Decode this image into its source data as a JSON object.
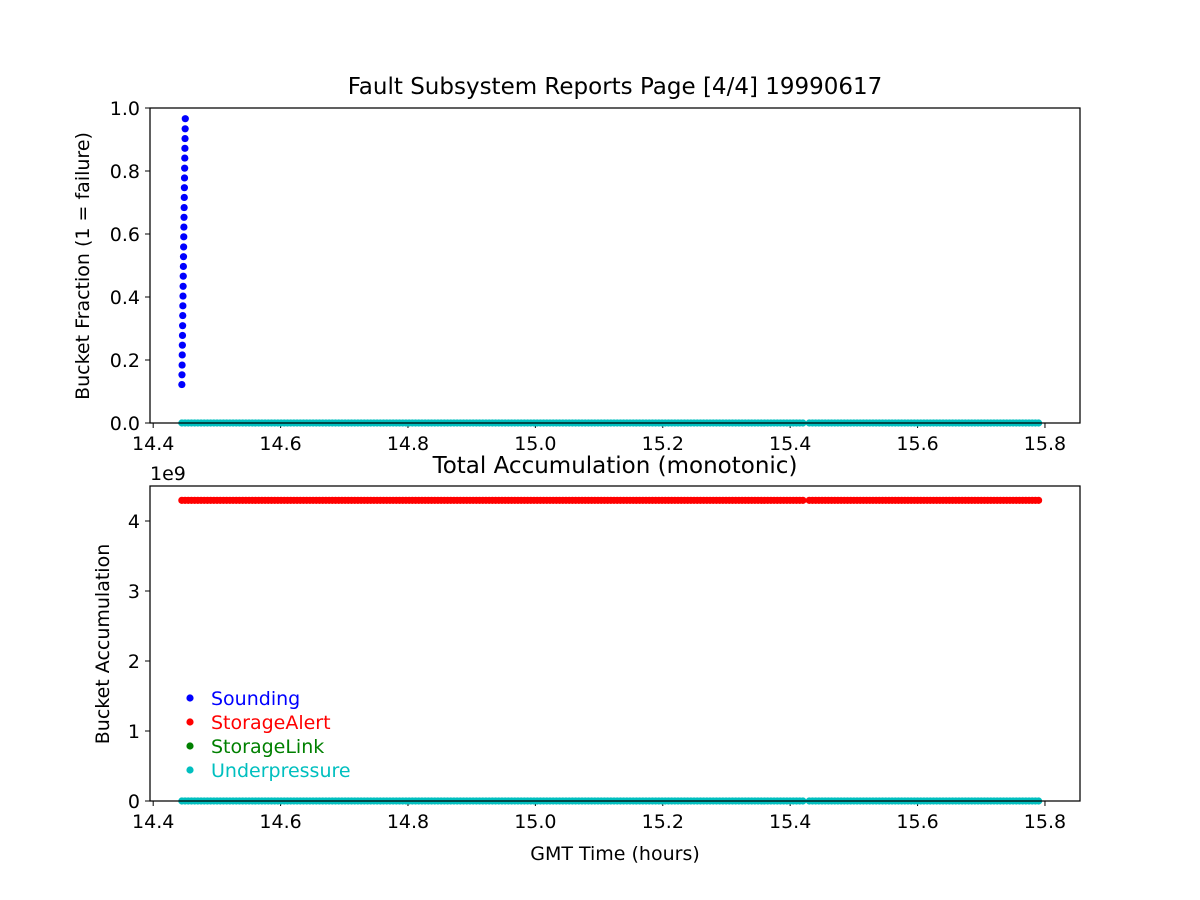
{
  "chart_data": [
    {
      "type": "scatter",
      "title": "Fault Subsystem Reports Page [4/4] 19990617",
      "xlabel": "",
      "ylabel": "Bucket Fraction (1 = failure)",
      "xlim": [
        14.395,
        15.855
      ],
      "ylim": [
        0.0,
        1.0
      ],
      "xticks": [
        14.4,
        14.6,
        14.8,
        15.0,
        15.2,
        15.4,
        15.6,
        15.8
      ],
      "xtick_labels": [
        "14.4",
        "14.6",
        "14.8",
        "15.0",
        "15.2",
        "15.4",
        "15.6",
        "15.8"
      ],
      "yticks": [
        0.0,
        0.2,
        0.4,
        0.6,
        0.8,
        1.0
      ],
      "ytick_labels": [
        "0.0",
        "0.2",
        "0.4",
        "0.6",
        "0.8",
        "1.0"
      ],
      "grid": false,
      "series": [
        {
          "name": "Sounding",
          "color": "#0000ff",
          "x": [
            14.445,
            14.4452,
            14.4454,
            14.4456,
            14.4458,
            14.446,
            14.4462,
            14.4464,
            14.4466,
            14.4468,
            14.447,
            14.4472,
            14.4474,
            14.4476,
            14.4478,
            14.448,
            14.4482,
            14.4484,
            14.4486,
            14.4488,
            14.449,
            14.4492,
            14.4494,
            14.4496,
            14.4498,
            14.45,
            14.4502,
            14.4504
          ],
          "y": [
            0.122,
            0.153,
            0.184,
            0.216,
            0.247,
            0.278,
            0.309,
            0.341,
            0.372,
            0.403,
            0.434,
            0.466,
            0.497,
            0.528,
            0.559,
            0.591,
            0.622,
            0.653,
            0.684,
            0.716,
            0.747,
            0.778,
            0.809,
            0.841,
            0.872,
            0.903,
            0.934,
            0.966
          ]
        },
        {
          "name": "Underpressure",
          "color": "#00bfbf",
          "segments": [
            {
              "x_start": 14.445,
              "x_end": 15.42,
              "y": 0.0
            },
            {
              "x_start": 15.43,
              "x_end": 15.79,
              "y": 0.0
            }
          ]
        }
      ]
    },
    {
      "type": "scatter",
      "title": "Total Accumulation (monotonic)",
      "xlabel": "GMT Time (hours)",
      "ylabel": "Bucket Accumulation",
      "offset_label": "1e9",
      "xlim": [
        14.395,
        15.855
      ],
      "ylim": [
        0.0,
        4.5
      ],
      "xticks": [
        14.4,
        14.6,
        14.8,
        15.0,
        15.2,
        15.4,
        15.6,
        15.8
      ],
      "xtick_labels": [
        "14.4",
        "14.6",
        "14.8",
        "15.0",
        "15.2",
        "15.4",
        "15.6",
        "15.8"
      ],
      "yticks": [
        0,
        1,
        2,
        3,
        4
      ],
      "ytick_labels": [
        "0",
        "1",
        "2",
        "3",
        "4"
      ],
      "grid": false,
      "legend_placement": "lower-left",
      "legend": [
        {
          "label": "Sounding",
          "color": "#0000ff"
        },
        {
          "label": "StorageAlert",
          "color": "#ff0000"
        },
        {
          "label": "StorageLink",
          "color": "#008000"
        },
        {
          "label": "Underpressure",
          "color": "#00bfbf"
        }
      ],
      "series": [
        {
          "name": "StorageAlert",
          "color": "#ff0000",
          "segments": [
            {
              "x_start": 14.445,
              "x_end": 15.42,
              "y": 4.295
            },
            {
              "x_start": 15.43,
              "x_end": 15.79,
              "y": 4.295
            }
          ]
        },
        {
          "name": "Underpressure",
          "color": "#00bfbf",
          "segments": [
            {
              "x_start": 14.445,
              "x_end": 15.42,
              "y": 0.0
            },
            {
              "x_start": 15.43,
              "x_end": 15.79,
              "y": 0.0
            }
          ]
        }
      ]
    }
  ]
}
